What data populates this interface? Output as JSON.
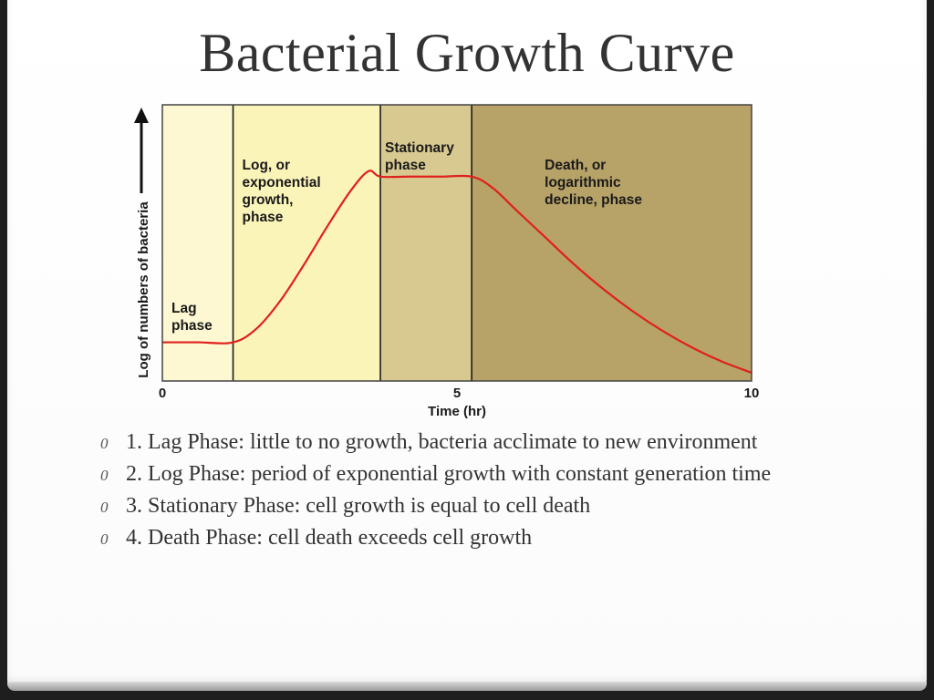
{
  "slide": {
    "title": "Bacterial Growth Curve",
    "bullet_marker": "0",
    "bullets": [
      "1. Lag Phase: little to no growth, bacteria acclimate to new environment",
      "2. Log Phase: period of exponential growth with constant generation time",
      "3. Stationary Phase: cell growth is equal to cell death",
      "4. Death Phase: cell death exceeds cell growth"
    ]
  },
  "chart_data": {
    "type": "line",
    "title": "",
    "xlabel": "Time (hr)",
    "ylabel": "Log of numbers of bacteria",
    "xlim": [
      0,
      10
    ],
    "x_ticks": [
      "0",
      "5",
      "10"
    ],
    "y_ticks": [],
    "ylim": [
      0,
      1
    ],
    "grid": false,
    "colors": {
      "curve": "#e0201c",
      "lag": "#fdf8d2",
      "log": "#fbf4b9",
      "stationary": "#d8c990",
      "death": "#b7a267",
      "divider": "#1a1a1a"
    },
    "phases": [
      {
        "label_lines": [
          "Lag",
          "phase"
        ],
        "x_start": 0,
        "x_end": 1.2
      },
      {
        "label_lines": [
          "Log, or",
          "exponential",
          "growth,",
          "phase"
        ],
        "x_start": 1.2,
        "x_end": 3.7
      },
      {
        "label_lines": [
          "Stationary",
          "phase"
        ],
        "x_start": 3.7,
        "x_end": 5.25
      },
      {
        "label_lines": [
          "Death, or",
          "logarithmic",
          "decline, phase"
        ],
        "x_start": 5.25,
        "x_end": 10
      }
    ],
    "series": [
      {
        "values_note": "",
        "x": [
          0,
          0.6,
          1.2,
          1.6,
          2.0,
          2.4,
          2.8,
          3.2,
          3.5,
          3.7,
          4.2,
          4.7,
          5.25,
          5.6,
          6.0,
          6.5,
          7.0,
          7.5,
          8.0,
          8.5,
          9.0,
          9.5,
          10
        ],
        "y": [
          0.14,
          0.14,
          0.14,
          0.19,
          0.29,
          0.42,
          0.56,
          0.69,
          0.76,
          0.74,
          0.74,
          0.74,
          0.74,
          0.7,
          0.62,
          0.52,
          0.42,
          0.33,
          0.25,
          0.18,
          0.12,
          0.07,
          0.03
        ]
      }
    ]
  }
}
